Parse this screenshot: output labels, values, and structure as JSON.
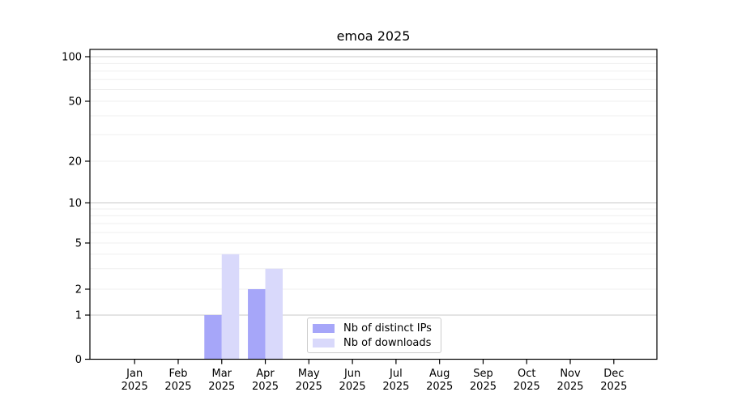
{
  "figure": {
    "title": "emoa 2025"
  },
  "chart_data": {
    "type": "bar",
    "title": "emoa 2025",
    "categories": [
      "Jan",
      "Feb",
      "Mar",
      "Apr",
      "May",
      "Jun",
      "Jul",
      "Aug",
      "Sep",
      "Oct",
      "Nov",
      "Dec"
    ],
    "category_year": "2025",
    "series": [
      {
        "name": "Nb of distinct IPs",
        "color": "#a6a6f9",
        "values": [
          0,
          0,
          1,
          2,
          0,
          0,
          0,
          0,
          0,
          0,
          0,
          0
        ]
      },
      {
        "name": "Nb of downloads",
        "color": "#d9d9fb",
        "values": [
          0,
          0,
          4,
          3,
          0,
          0,
          0,
          0,
          0,
          0,
          0,
          0
        ]
      }
    ],
    "xlabel": "",
    "ylabel": "",
    "yscale": "symlog",
    "yticks": [
      0,
      1,
      2,
      5,
      10,
      20,
      50,
      100
    ],
    "ylim": [
      0,
      110
    ],
    "grid": "on",
    "legend_position": "lower center"
  },
  "style_colors": {
    "grid_major": "#c8c8c8",
    "grid_minor": "#efefef",
    "spine": "#000000",
    "tick_label": "#000000",
    "background": "#ffffff"
  }
}
